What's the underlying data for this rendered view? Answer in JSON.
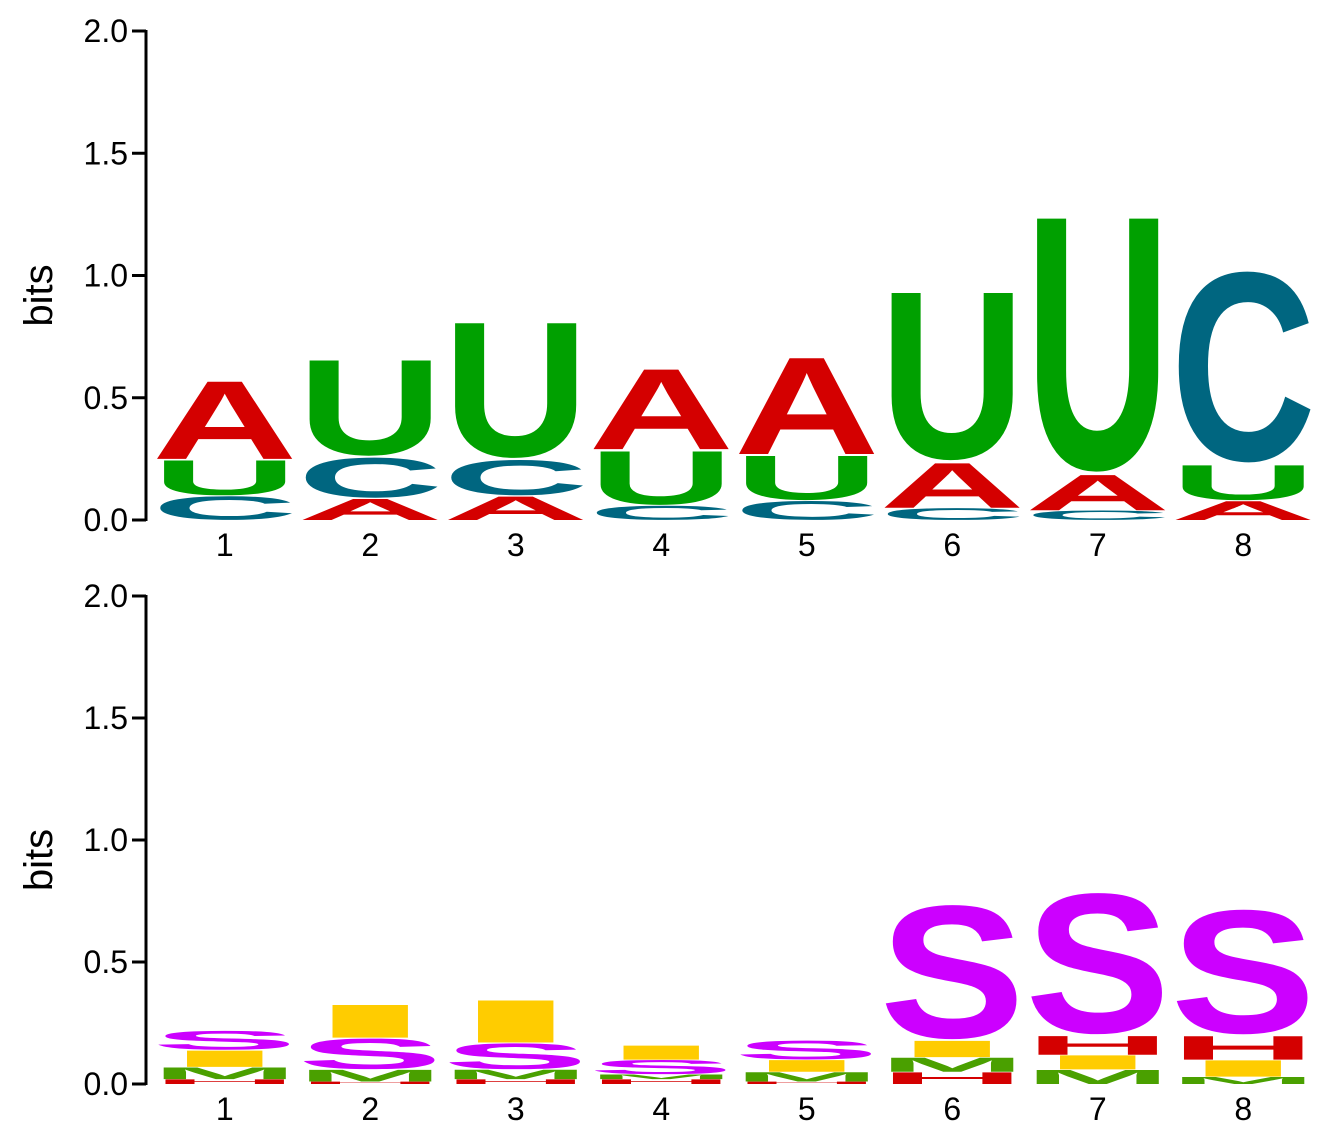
{
  "colors": {
    "A": "#d40000",
    "C": "#006680",
    "U": "#00a000",
    "S": "#cc00ff",
    "I": "#ffcc00",
    "M": "#4aa000",
    "H": "#d40000"
  },
  "chart_data": [
    {
      "type": "sequence-logo",
      "ylabel": "bits",
      "ylim": [
        0,
        2.0
      ],
      "yticks": [
        "0.0",
        "0.5",
        "1.0",
        "1.5",
        "2.0"
      ],
      "positions": [
        "1",
        "2",
        "3",
        "4",
        "5",
        "6",
        "7",
        "8"
      ],
      "stacks": [
        [
          {
            "letter": "C",
            "height": 0.1
          },
          {
            "letter": "U",
            "height": 0.15
          },
          {
            "letter": "A",
            "height": 0.33
          }
        ],
        [
          {
            "letter": "A",
            "height": 0.09
          },
          {
            "letter": "C",
            "height": 0.17
          },
          {
            "letter": "U",
            "height": 0.41
          }
        ],
        [
          {
            "letter": "A",
            "height": 0.1
          },
          {
            "letter": "C",
            "height": 0.15
          },
          {
            "letter": "U",
            "height": 0.58
          }
        ],
        [
          {
            "letter": "C",
            "height": 0.06
          },
          {
            "letter": "U",
            "height": 0.23
          },
          {
            "letter": "A",
            "height": 0.34
          }
        ],
        [
          {
            "letter": "C",
            "height": 0.08
          },
          {
            "letter": "U",
            "height": 0.19
          },
          {
            "letter": "A",
            "height": 0.41
          }
        ],
        [
          {
            "letter": "C",
            "height": 0.05
          },
          {
            "letter": "A",
            "height": 0.19
          },
          {
            "letter": "U",
            "height": 0.72
          }
        ],
        [
          {
            "letter": "C",
            "height": 0.04
          },
          {
            "letter": "A",
            "height": 0.15
          },
          {
            "letter": "U",
            "height": 1.09
          }
        ],
        [
          {
            "letter": "A",
            "height": 0.08
          },
          {
            "letter": "U",
            "height": 0.15
          },
          {
            "letter": "C",
            "height": 0.81
          }
        ]
      ]
    },
    {
      "type": "sequence-logo",
      "ylabel": "bits",
      "ylim": [
        0,
        2.0
      ],
      "yticks": [
        "0.0",
        "0.5",
        "1.0",
        "1.5",
        "2.0"
      ],
      "positions": [
        "1",
        "2",
        "3",
        "4",
        "5",
        "6",
        "7",
        "8"
      ],
      "stacks": [
        [
          {
            "letter": "H",
            "height": 0.02
          },
          {
            "letter": "M",
            "height": 0.05
          },
          {
            "letter": "I",
            "height": 0.07
          },
          {
            "letter": "S",
            "height": 0.08
          }
        ],
        [
          {
            "letter": "H",
            "height": 0.01
          },
          {
            "letter": "M",
            "height": 0.05
          },
          {
            "letter": "S",
            "height": 0.13
          },
          {
            "letter": "I",
            "height": 0.14
          }
        ],
        [
          {
            "letter": "H",
            "height": 0.02
          },
          {
            "letter": "M",
            "height": 0.04
          },
          {
            "letter": "S",
            "height": 0.11
          },
          {
            "letter": "I",
            "height": 0.18
          }
        ],
        [
          {
            "letter": "H",
            "height": 0.02
          },
          {
            "letter": "M",
            "height": 0.02
          },
          {
            "letter": "S",
            "height": 0.06
          },
          {
            "letter": "I",
            "height": 0.06
          }
        ],
        [
          {
            "letter": "H",
            "height": 0.01
          },
          {
            "letter": "M",
            "height": 0.04
          },
          {
            "letter": "I",
            "height": 0.05
          },
          {
            "letter": "S",
            "height": 0.08
          }
        ],
        [
          {
            "letter": "H",
            "height": 0.05
          },
          {
            "letter": "M",
            "height": 0.06
          },
          {
            "letter": "I",
            "height": 0.07
          },
          {
            "letter": "S",
            "height": 0.57
          }
        ],
        [
          {
            "letter": "M",
            "height": 0.06
          },
          {
            "letter": "I",
            "height": 0.06
          },
          {
            "letter": "H",
            "height": 0.08
          },
          {
            "letter": "S",
            "height": 0.6
          }
        ],
        [
          {
            "letter": "M",
            "height": 0.03
          },
          {
            "letter": "I",
            "height": 0.07
          },
          {
            "letter": "H",
            "height": 0.1
          },
          {
            "letter": "S",
            "height": 0.53
          }
        ]
      ]
    }
  ]
}
